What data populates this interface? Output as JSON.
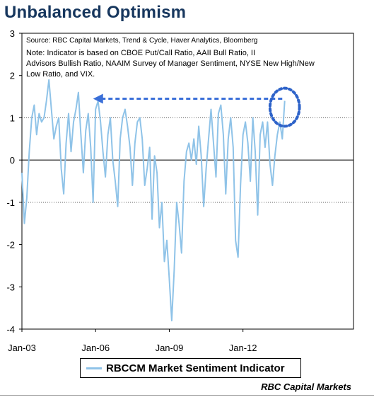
{
  "title": "Unbalanced Optimism",
  "footer": "RBC Capital Markets",
  "chart_data": {
    "type": "line",
    "title": "Unbalanced Optimism",
    "source_note": "Source: RBC Capital Markets, Trend & Cycle, Haver Analytics, Bloomberg",
    "indicator_note": "Note: Indicator is based on CBOE Put/Call Ratio, AAII Bull Ratio, II Advisors Bullish Ratio, NAAIM Survey of Manager Sentiment, NYSE New High/New Low Ratio, and VIX.",
    "xlabel": "",
    "ylabel": "",
    "ylim": [
      -4,
      3
    ],
    "yticks": [
      3,
      2,
      1,
      0,
      -1,
      -2,
      -3,
      -4
    ],
    "xlim": [
      2003.0,
      2016.5
    ],
    "xticks": [
      {
        "value": 2003.0,
        "label": "Jan-03"
      },
      {
        "value": 2006.0,
        "label": "Jan-06"
      },
      {
        "value": 2009.0,
        "label": "Jan-09"
      },
      {
        "value": 2012.0,
        "label": "Jan-12"
      }
    ],
    "gridlines": [
      1,
      -1
    ],
    "legend": "bottom-center",
    "series": [
      {
        "name": "RBCCM Market Sentiment Indicator",
        "color": "#8fc3e8",
        "x": [
          2003.0,
          2003.1,
          2003.2,
          2003.3,
          2003.4,
          2003.5,
          2003.6,
          2003.7,
          2003.8,
          2003.9,
          2004.0,
          2004.1,
          2004.2,
          2004.3,
          2004.4,
          2004.5,
          2004.6,
          2004.7,
          2004.8,
          2004.9,
          2005.0,
          2005.1,
          2005.2,
          2005.3,
          2005.4,
          2005.5,
          2005.6,
          2005.7,
          2005.8,
          2005.9,
          2006.0,
          2006.1,
          2006.2,
          2006.3,
          2006.4,
          2006.5,
          2006.6,
          2006.7,
          2006.8,
          2006.9,
          2007.0,
          2007.1,
          2007.2,
          2007.3,
          2007.4,
          2007.5,
          2007.6,
          2007.7,
          2007.8,
          2007.9,
          2008.0,
          2008.1,
          2008.2,
          2008.3,
          2008.4,
          2008.5,
          2008.6,
          2008.7,
          2008.8,
          2008.9,
          2009.0,
          2009.1,
          2009.2,
          2009.3,
          2009.4,
          2009.5,
          2009.6,
          2009.7,
          2009.8,
          2009.9,
          2010.0,
          2010.1,
          2010.2,
          2010.3,
          2010.4,
          2010.5,
          2010.6,
          2010.7,
          2010.8,
          2010.9,
          2011.0,
          2011.1,
          2011.2,
          2011.3,
          2011.4,
          2011.5,
          2011.6,
          2011.7,
          2011.8,
          2011.9,
          2012.0,
          2012.1,
          2012.2,
          2012.3,
          2012.4,
          2012.5,
          2012.6,
          2012.7,
          2012.8,
          2012.9,
          2013.0,
          2013.1,
          2013.2,
          2013.3,
          2013.4,
          2013.5,
          2013.6,
          2013.7
        ],
        "values": [
          -0.3,
          -1.5,
          -0.9,
          0.2,
          1.0,
          1.3,
          0.6,
          1.1,
          0.9,
          1.0,
          1.4,
          1.9,
          1.2,
          0.5,
          0.8,
          1.0,
          -0.2,
          -0.8,
          0.4,
          1.1,
          0.2,
          0.9,
          1.2,
          1.6,
          0.6,
          -0.3,
          0.7,
          1.1,
          0.3,
          -1.0,
          1.2,
          1.4,
          0.9,
          0.2,
          -0.4,
          0.6,
          1.0,
          0.0,
          -0.5,
          -1.1,
          0.5,
          1.0,
          1.2,
          0.8,
          0.3,
          -0.6,
          0.4,
          0.9,
          1.0,
          0.5,
          -0.6,
          -0.2,
          0.3,
          -1.4,
          0.1,
          -0.3,
          -1.6,
          -1.0,
          -2.4,
          -1.9,
          -2.8,
          -3.8,
          -2.6,
          -1.0,
          -1.5,
          -2.2,
          -0.5,
          0.2,
          0.4,
          0.0,
          0.5,
          -0.1,
          0.8,
          0.1,
          -1.1,
          -0.2,
          0.5,
          1.2,
          0.4,
          -0.4,
          1.1,
          1.3,
          0.6,
          -0.8,
          0.5,
          1.0,
          0.3,
          -1.9,
          -2.3,
          -0.6,
          0.6,
          0.9,
          0.4,
          -0.5,
          1.0,
          0.2,
          -1.3,
          0.6,
          0.9,
          0.3,
          0.9,
          -0.1,
          -0.6,
          0.1,
          0.6,
          0.9,
          0.5,
          1.4
        ]
      }
    ],
    "annotations": [
      {
        "type": "arrow-dashed",
        "from_x": 2013.6,
        "to_x": 2005.9,
        "y": 1.45,
        "color": "#3a6fd8"
      },
      {
        "type": "circle-dotted",
        "cx": 2013.7,
        "cy": 1.25,
        "rx_years": 0.6,
        "ry": 0.45,
        "color": "#2e63c9"
      }
    ]
  }
}
